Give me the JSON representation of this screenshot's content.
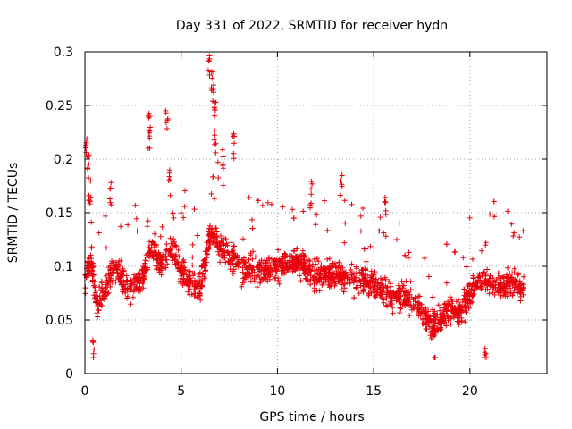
{
  "chart_data": {
    "type": "scatter",
    "title": "Day 331 of 2022, SRMTID for receiver hydn",
    "xlabel": "GPS time / hours",
    "ylabel": "SRMTID / TECUs",
    "xlim": [
      0,
      24
    ],
    "ylim": [
      0,
      0.3
    ],
    "xticks": [
      0,
      5,
      10,
      15,
      20
    ],
    "xtick_labels": [
      "0",
      "5",
      "10",
      "15",
      "20"
    ],
    "yticks": [
      0,
      0.05,
      0.1,
      0.15,
      0.2,
      0.25,
      0.3
    ],
    "ytick_labels": [
      "0",
      "0.05",
      "0.1",
      "0.15",
      "0.2",
      "0.25",
      "0.3"
    ],
    "grid": true,
    "marker": "+",
    "color": "#e8000b",
    "series": [
      {
        "name": "SRMTID",
        "trend_x": [
          0,
          0.3,
          0.6,
          1.0,
          1.5,
          2.0,
          2.5,
          3.0,
          3.5,
          4.0,
          4.5,
          5.0,
          5.5,
          6.0,
          6.5,
          7.0,
          7.5,
          8.0,
          9.0,
          10.0,
          11.0,
          12.0,
          13.0,
          14.0,
          15.0,
          16.0,
          16.5,
          17.0,
          17.5,
          18.0,
          18.5,
          19.0,
          19.5,
          20.0,
          20.5,
          21.0,
          21.5,
          22.0,
          22.8
        ],
        "trend_y": [
          0.085,
          0.11,
          0.065,
          0.075,
          0.1,
          0.085,
          0.08,
          0.09,
          0.12,
          0.1,
          0.12,
          0.095,
          0.085,
          0.08,
          0.13,
          0.12,
          0.11,
          0.1,
          0.095,
          0.1,
          0.105,
          0.09,
          0.095,
          0.09,
          0.085,
          0.07,
          0.075,
          0.065,
          0.06,
          0.045,
          0.05,
          0.06,
          0.055,
          0.075,
          0.09,
          0.085,
          0.08,
          0.085,
          0.08
        ],
        "spikes": [
          [
            0.1,
            0.22
          ],
          [
            0.15,
            0.205
          ],
          [
            0.25,
            0.17
          ],
          [
            0.45,
            0.035
          ],
          [
            1.35,
            0.18
          ],
          [
            3.35,
            0.245
          ],
          [
            3.35,
            0.23
          ],
          [
            4.25,
            0.25
          ],
          [
            4.4,
            0.19
          ],
          [
            6.45,
            0.3
          ],
          [
            6.6,
            0.285
          ],
          [
            6.7,
            0.27
          ],
          [
            6.75,
            0.255
          ],
          [
            6.75,
            0.23
          ],
          [
            7.15,
            0.21
          ],
          [
            7.7,
            0.225
          ],
          [
            11.75,
            0.18
          ],
          [
            13.3,
            0.19
          ],
          [
            15.6,
            0.17
          ],
          [
            18.2,
            0.015
          ],
          [
            20.8,
            0.025
          ]
        ],
        "x_range": [
          0,
          22.8
        ],
        "y_range": [
          0.015,
          0.3
        ]
      }
    ]
  }
}
